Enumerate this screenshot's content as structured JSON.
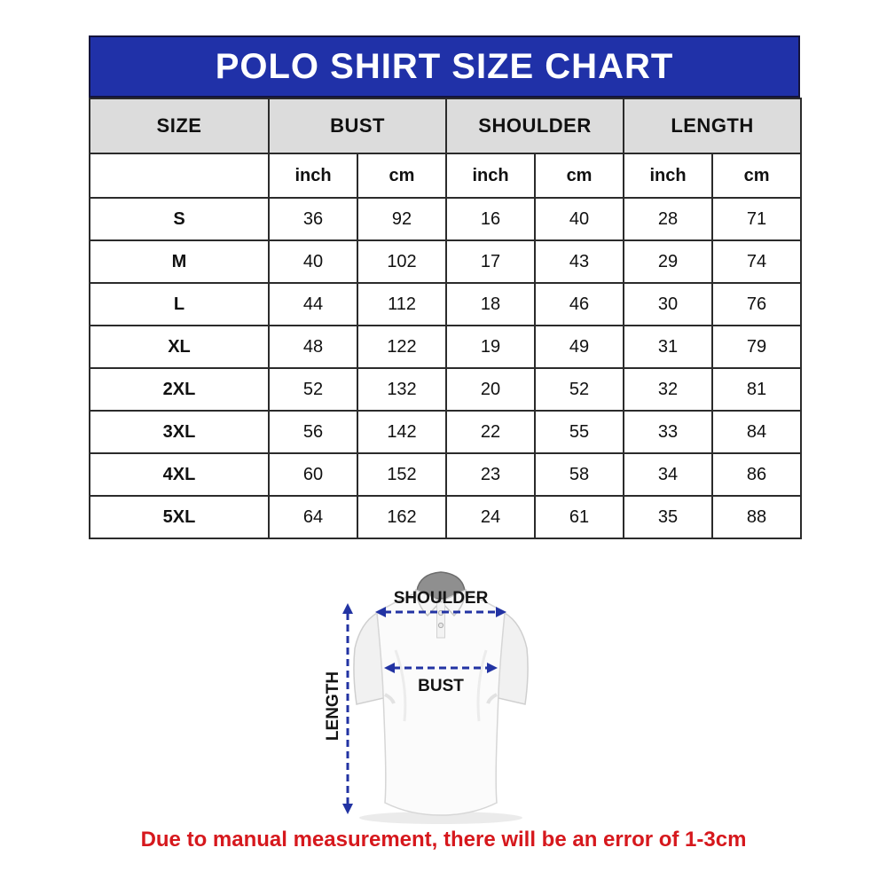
{
  "title_bar": {
    "text": "POLO SHIRT SIZE CHART"
  },
  "table": {
    "header_groups": [
      {
        "label": "SIZE",
        "colspan": 1
      },
      {
        "label": "BUST",
        "colspan": 2
      },
      {
        "label": "SHOULDER",
        "colspan": 2
      },
      {
        "label": "LENGTH",
        "colspan": 2
      }
    ],
    "unit_labels": [
      "inch",
      "cm",
      "inch",
      "cm",
      "inch",
      "cm"
    ],
    "rows": [
      {
        "size": "S",
        "values": [
          "36",
          "92",
          "16",
          "40",
          "28",
          "71"
        ]
      },
      {
        "size": "M",
        "values": [
          "40",
          "102",
          "17",
          "43",
          "29",
          "74"
        ]
      },
      {
        "size": "L",
        "values": [
          "44",
          "112",
          "18",
          "46",
          "30",
          "76"
        ]
      },
      {
        "size": "XL",
        "values": [
          "48",
          "122",
          "19",
          "49",
          "31",
          "79"
        ]
      },
      {
        "size": "2XL",
        "values": [
          "52",
          "132",
          "20",
          "52",
          "32",
          "81"
        ]
      },
      {
        "size": "3XL",
        "values": [
          "56",
          "142",
          "22",
          "55",
          "33",
          "84"
        ]
      },
      {
        "size": "4XL",
        "values": [
          "60",
          "152",
          "23",
          "58",
          "34",
          "86"
        ]
      },
      {
        "size": "5XL",
        "values": [
          "64",
          "162",
          "24",
          "61",
          "35",
          "88"
        ]
      }
    ]
  },
  "diagram": {
    "shoulder_label": "SHOULDER",
    "bust_label": "BUST",
    "length_label": "LENGTH"
  },
  "note": {
    "text": "Due to manual measurement, there will be an error of 1-3cm"
  },
  "colors": {
    "title_bg": "#2031a8",
    "title_fg": "#ffffff",
    "header_row_bg": "#dcdcdc",
    "grid_border": "#2b2b2b",
    "arrow": "#2233a3",
    "note": "#d6181d",
    "text": "#111111"
  }
}
